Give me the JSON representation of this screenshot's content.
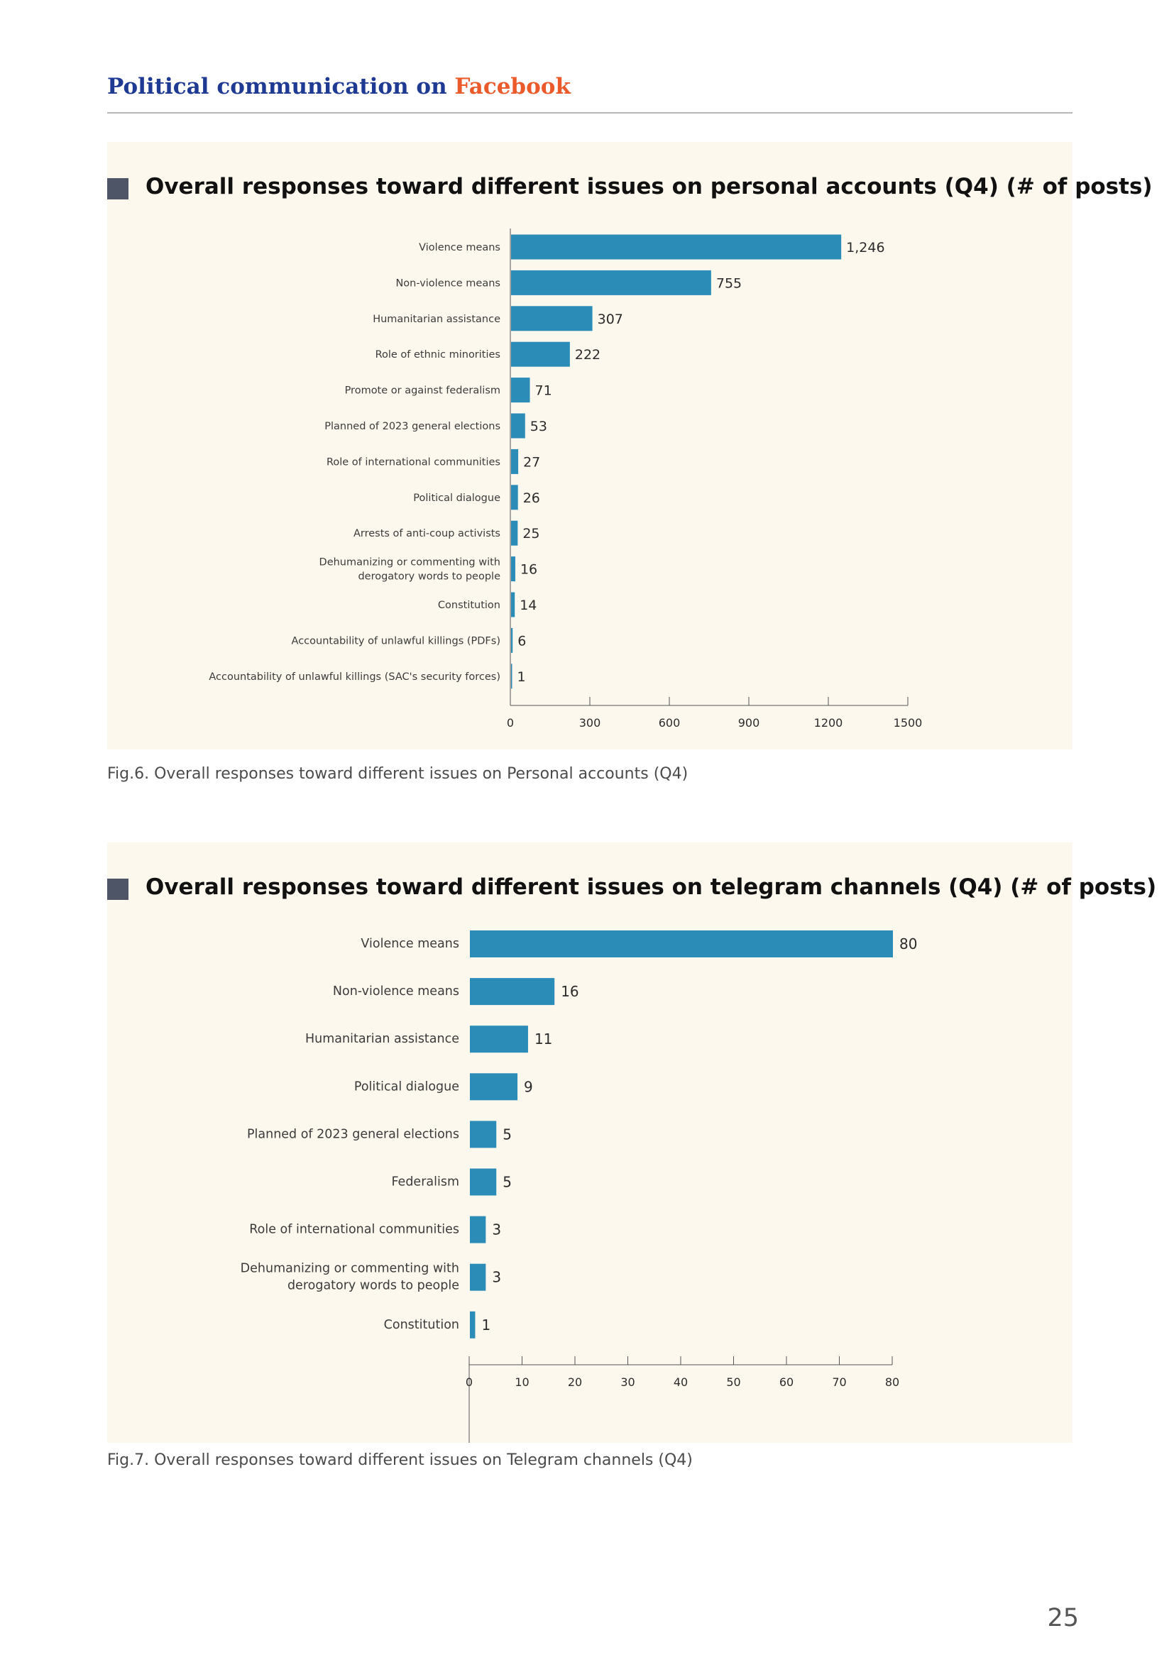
{
  "header": {
    "title_main": "Political communication on ",
    "title_accent": "Facebook"
  },
  "colors": {
    "bar": "#2b8cb8",
    "panel": "#fcf8ee",
    "header": "#1f3a93",
    "accent": "#ea5a2a"
  },
  "panels": [
    {
      "title": "Overall responses toward different issues on personal accounts (Q4) (# of posts)",
      "caption": "Fig.6. Overall responses toward different issues on Personal accounts (Q4)"
    },
    {
      "title": "Overall responses toward different issues on telegram channels (Q4) (# of posts)",
      "caption": "Fig.7. Overall responses toward different issues on Telegram channels (Q4)"
    }
  ],
  "page_number": "25",
  "chart_data": [
    {
      "type": "bar",
      "orientation": "horizontal",
      "categories": [
        "Violence means",
        "Non-violence means",
        "Humanitarian assistance",
        "Role of ethnic minorities",
        "Promote or against federalism",
        "Planned of 2023 general elections",
        "Role of international communities",
        "Political dialogue",
        "Arrests of anti-coup activists",
        [
          "Dehumanizing or commenting with",
          "derogatory words to people"
        ],
        "Constitution",
        "Accountability of unlawful killings (PDFs)",
        "Accountability of unlawful killings (SAC's security forces)"
      ],
      "values": [
        1246,
        755,
        307,
        222,
        71,
        53,
        27,
        26,
        25,
        16,
        14,
        6,
        1
      ],
      "value_labels": [
        "1,246",
        "755",
        "307",
        "222",
        "71",
        "53",
        "27",
        "26",
        "25",
        "16",
        "14",
        "6",
        "1"
      ],
      "xlim": [
        0,
        1500
      ],
      "ticks": [
        0,
        300,
        600,
        900,
        1200,
        1500
      ],
      "tick_labels": [
        "0",
        "300",
        "600",
        "900",
        "1200",
        "1500"
      ]
    },
    {
      "type": "bar",
      "orientation": "horizontal",
      "categories": [
        "Violence means",
        "Non-violence means",
        "Humanitarian assistance",
        "Political dialogue",
        "Planned of 2023 general elections",
        "Federalism",
        "Role of international communities",
        [
          "Dehumanizing or commenting with",
          "derogatory words to people"
        ],
        "Constitution"
      ],
      "values": [
        80,
        16,
        11,
        9,
        5,
        5,
        3,
        3,
        1
      ],
      "value_labels": [
        "80",
        "16",
        "11",
        "9",
        "5",
        "5",
        "3",
        "3",
        "1"
      ],
      "xlim": [
        0,
        80
      ],
      "ticks": [
        0,
        10,
        20,
        30,
        40,
        50,
        60,
        70,
        80
      ],
      "tick_labels": [
        "0",
        "10",
        "20",
        "30",
        "40",
        "50",
        "60",
        "70",
        "80"
      ]
    }
  ]
}
